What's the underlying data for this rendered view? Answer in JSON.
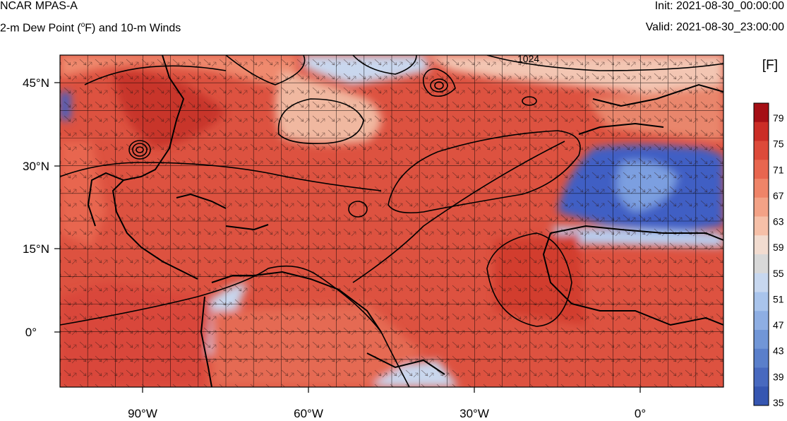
{
  "header": {
    "model": "NCAR MPAS-A",
    "field_prefix": "2-m Dew Point (",
    "field_degree": "o",
    "field_suffix": "F) and 10-m Winds",
    "init": "Init: 2021-08-30_00:00:00",
    "valid": "Valid: 2021-08-30_23:00:00"
  },
  "map": {
    "lat_labels": [
      "45°N",
      "30°N",
      "15°N",
      "0°"
    ],
    "lon_labels": [
      "90°W",
      "60°W",
      "30°W",
      "0°"
    ],
    "contour_label": "1024",
    "extent": {
      "lon_min": -105,
      "lon_max": 15,
      "lat_min": -10,
      "lat_max": 50
    }
  },
  "colorbar": {
    "unit": "[F]",
    "labels": [
      "79",
      "75",
      "71",
      "67",
      "63",
      "59",
      "55",
      "51",
      "47",
      "43",
      "39",
      "35"
    ],
    "colors": [
      "#a50f15",
      "#cb2d26",
      "#dd4a3a",
      "#e8664f",
      "#ef8468",
      "#f3a286",
      "#f6c0a8",
      "#f2dcd0",
      "#d8d8d8",
      "#c7d7ef",
      "#a9c4ec",
      "#8eaee3",
      "#7196d7",
      "#5a7fcb",
      "#4869bf",
      "#3656b1"
    ]
  },
  "colors": {
    "warm": "#dc4b3a",
    "cool": "#3f5fc4",
    "land_outline": "#000000"
  }
}
